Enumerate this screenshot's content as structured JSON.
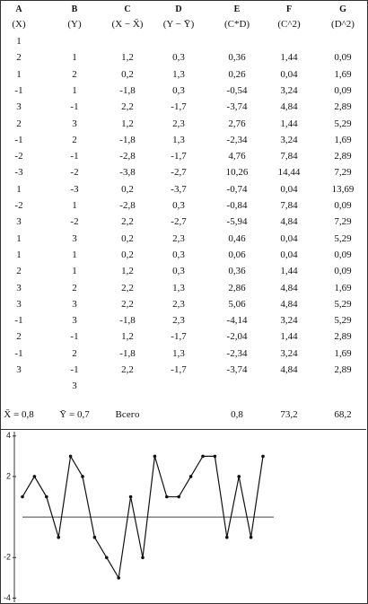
{
  "table": {
    "letters": [
      "A",
      "B",
      "C",
      "D",
      "E",
      "F",
      "G"
    ],
    "headers": [
      "(X)",
      "(Y)",
      "(X − X̄)",
      "(Y − Ȳ)",
      "(C*D)",
      "(C^2)",
      "(D^2)"
    ],
    "rows": [
      [
        "1"
      ],
      [
        "2",
        "1",
        "1,2",
        "0,3",
        "0,36",
        "1,44",
        "0,09"
      ],
      [
        "1",
        "2",
        "0,2",
        "1,3",
        "0,26",
        "0,04",
        "1,69"
      ],
      [
        "-1",
        "1",
        "-1,8",
        "0,3",
        "-0,54",
        "3,24",
        "0,09"
      ],
      [
        "3",
        "-1",
        "2,2",
        "-1,7",
        "-3,74",
        "4,84",
        "2,89"
      ],
      [
        "2",
        "3",
        "1,2",
        "2,3",
        "2,76",
        "1,44",
        "5,29"
      ],
      [
        "-1",
        "2",
        "-1,8",
        "1,3",
        "-2,34",
        "3,24",
        "1,69"
      ],
      [
        "-2",
        "-1",
        "-2,8",
        "-1,7",
        "4,76",
        "7,84",
        "2,89"
      ],
      [
        "-3",
        "-2",
        "-3,8",
        "-2,7",
        "10,26",
        "14,44",
        "7,29"
      ],
      [
        "1",
        "-3",
        "0,2",
        "-3,7",
        "-0,74",
        "0,04",
        "13,69"
      ],
      [
        "-2",
        "1",
        "-2,8",
        "0,3",
        "-0,84",
        "7,84",
        "0,09"
      ],
      [
        "3",
        "-2",
        "2,2",
        "-2,7",
        "-5,94",
        "4,84",
        "7,29"
      ],
      [
        "1",
        "3",
        "0,2",
        "2,3",
        "0,46",
        "0,04",
        "5,29"
      ],
      [
        "1",
        "1",
        "0,2",
        "0,3",
        "0,06",
        "0,04",
        "0,09"
      ],
      [
        "2",
        "1",
        "1,2",
        "0,3",
        "0,36",
        "1,44",
        "0,09"
      ],
      [
        "3",
        "2",
        "2,2",
        "1,3",
        "2,86",
        "4,84",
        "1,69"
      ],
      [
        "3",
        "3",
        "2,2",
        "2,3",
        "5,06",
        "4,84",
        "5,29"
      ],
      [
        "-1",
        "3",
        "-1,8",
        "2,3",
        "-4,14",
        "3,24",
        "5,29"
      ],
      [
        "2",
        "-1",
        "1,2",
        "-1,7",
        "-2,04",
        "1,44",
        "2,89"
      ],
      [
        "-1",
        "2",
        "-1,8",
        "1,3",
        "-2,34",
        "3,24",
        "1,69"
      ],
      [
        "3",
        "-1",
        "2,2",
        "-1,7",
        "-3,74",
        "4,84",
        "2,89"
      ],
      [
        null,
        "3"
      ]
    ],
    "footer": [
      "X̄ = 0,8",
      "Ȳ = 0,7",
      "Всего",
      null,
      "0,8",
      "73,2",
      "68,2"
    ]
  },
  "chart_data": {
    "type": "line",
    "values": [
      1,
      2,
      1,
      -1,
      3,
      2,
      -1,
      -2,
      -3,
      1,
      -2,
      3,
      1,
      1,
      2,
      3,
      3,
      -1,
      2,
      -1,
      3
    ],
    "color": "#111111",
    "ylim": [
      -4.2,
      4.3
    ],
    "yticks": [
      -4,
      -2,
      2,
      4
    ]
  }
}
